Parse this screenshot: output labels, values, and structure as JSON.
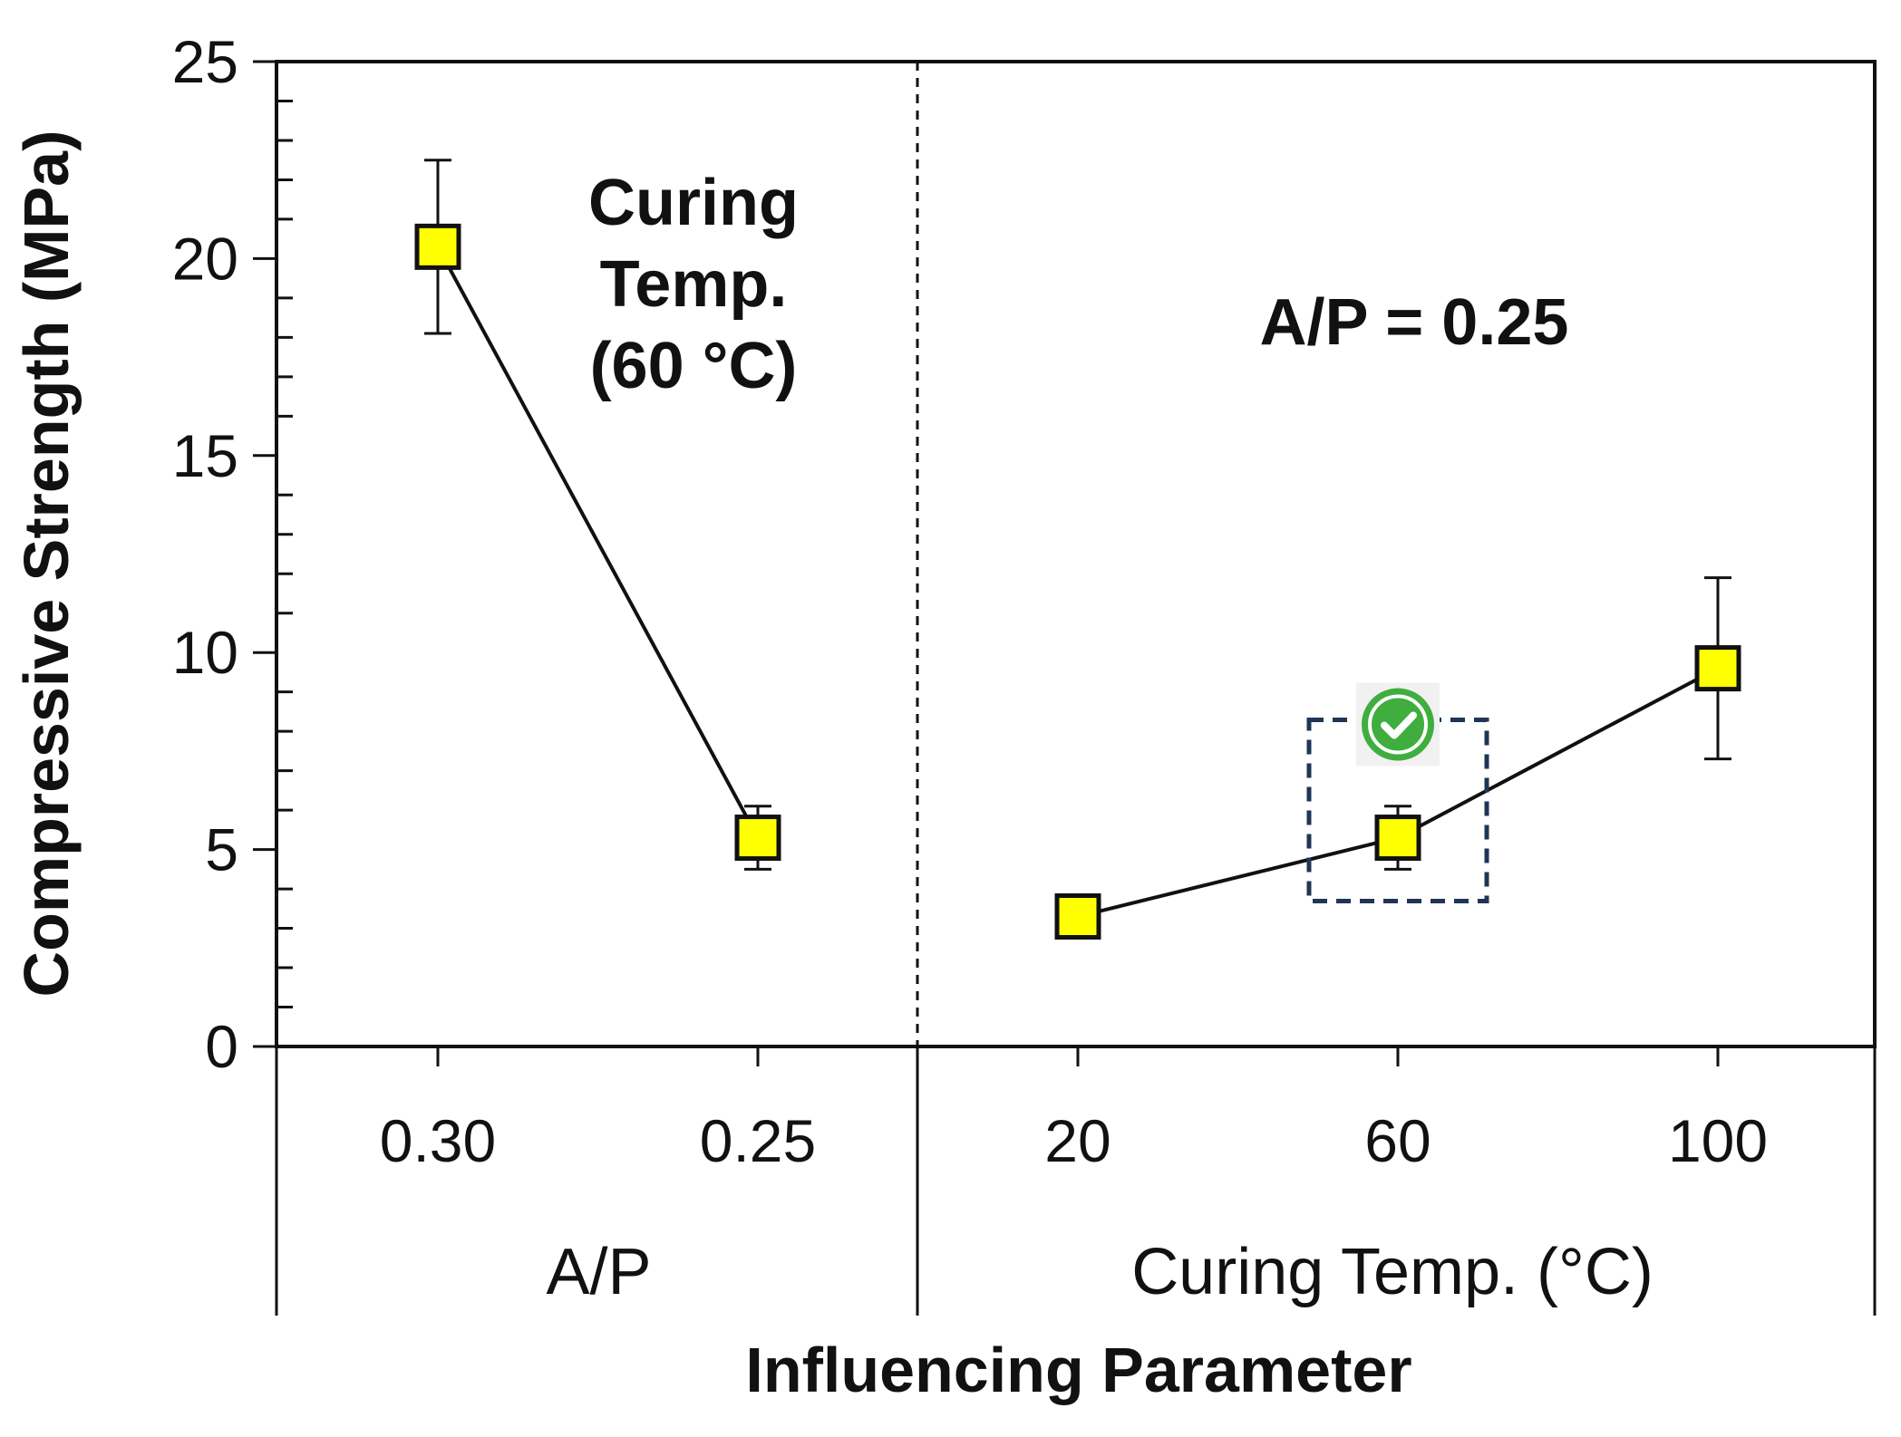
{
  "chart_data": {
    "type": "line",
    "title": "",
    "xlabel": "Influencing Parameter",
    "ylabel": "Compressive Strength (MPa)",
    "ylim": [
      0,
      25
    ],
    "yticks": [
      "0",
      "5",
      "10",
      "15",
      "20",
      "25"
    ],
    "grid": false,
    "groups": [
      {
        "label": "A/P",
        "categories": [
          "0.30",
          "0.25"
        ],
        "values": [
          20.3,
          5.3
        ],
        "error": [
          2.2,
          0.8
        ],
        "annotation": [
          "Curing",
          "Temp.",
          "(60 °C)"
        ]
      },
      {
        "label": "Curing Temp. (°C)",
        "categories": [
          "20",
          "60",
          "100"
        ],
        "values": [
          3.3,
          5.3,
          9.6
        ],
        "error": [
          0.0,
          0.8,
          2.3
        ],
        "annotation": [
          "A/P = 0.25"
        ]
      }
    ],
    "marker_color": "#ffff00",
    "highlight": {
      "group": 1,
      "index": 1,
      "badge": "check-icon",
      "badge_color": "#3fae3f"
    }
  }
}
